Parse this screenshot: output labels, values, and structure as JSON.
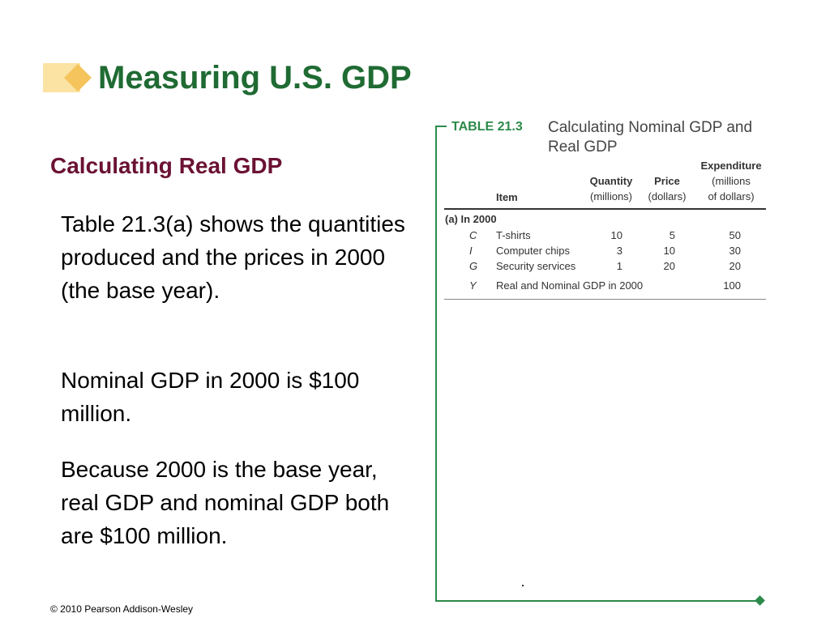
{
  "slide": {
    "title": "Measuring U.S. GDP",
    "subtitle": "Calculating Real GDP",
    "paragraphs": [
      "Table 21.3(a) shows the quantities produced and the prices in 2000 (the base year).",
      "Nominal GDP in 2000 is $100 million.",
      "Because 2000 is the base year, real GDP and nominal GDP both are $100 million."
    ],
    "footer": "© 2010 Pearson Addison-Wesley"
  },
  "table": {
    "label": "TABLE 21.3",
    "caption": "Calculating Nominal GDP and Real GDP",
    "headers": {
      "item": "Item",
      "quantity": "Quantity",
      "quantity_unit": "(millions)",
      "price": "Price",
      "price_unit": "(dollars)",
      "expenditure": "Expenditure",
      "expenditure_unit1": "(millions",
      "expenditure_unit2": "of dollars)"
    },
    "section_label": "(a) In 2000",
    "rows": [
      {
        "symbol": "C",
        "item": "T-shirts",
        "quantity": "10",
        "price": "5",
        "expenditure": "50"
      },
      {
        "symbol": "I",
        "item": "Computer chips",
        "quantity": "3",
        "price": "10",
        "expenditure": "30"
      },
      {
        "symbol": "G",
        "item": "Security services",
        "quantity": "1",
        "price": "20",
        "expenditure": "20"
      }
    ],
    "total_row": {
      "symbol": "Y",
      "item": "Real and Nominal GDP in 2000",
      "expenditure": "100"
    }
  },
  "colors": {
    "title": "#1f6b33",
    "subtitle": "#6b1234",
    "figure_accent": "#2c8a4a"
  }
}
